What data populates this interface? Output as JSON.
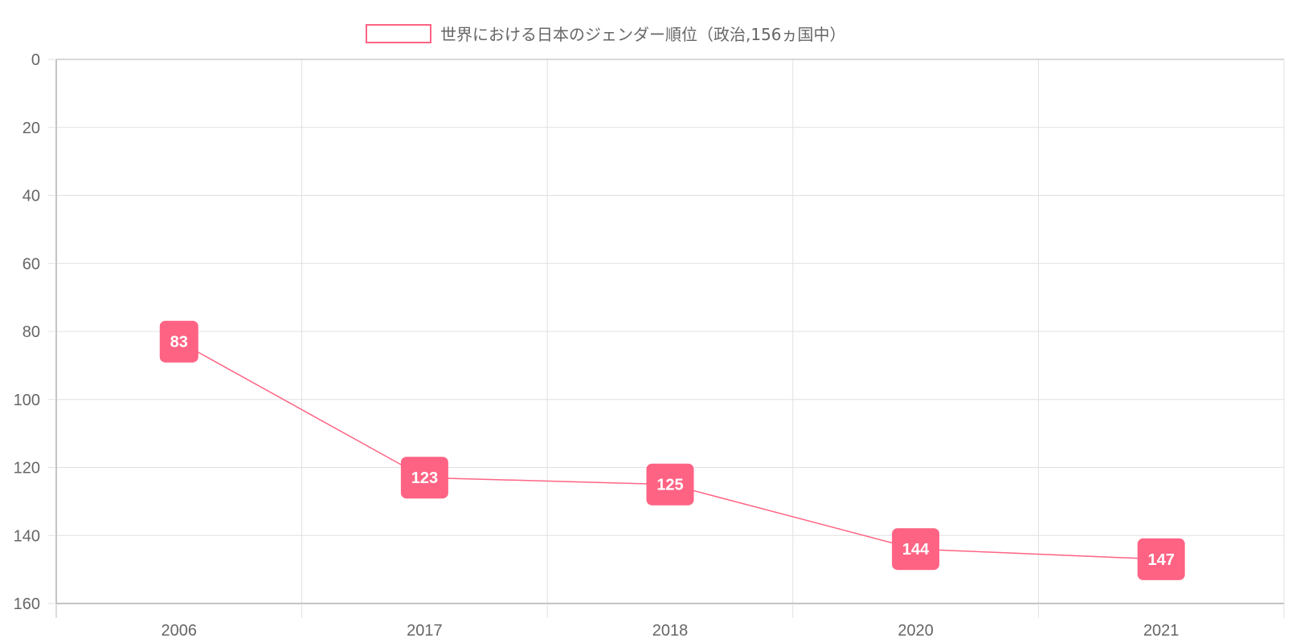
{
  "chart_data": {
    "type": "line",
    "categories": [
      "2006",
      "2017",
      "2018",
      "2020",
      "2021"
    ],
    "series": [
      {
        "name": "世界における日本のジェンダー順位（政治,156ヵ国中）",
        "values": [
          83,
          123,
          125,
          144,
          147
        ]
      }
    ],
    "ylim": [
      0,
      160
    ],
    "y_ticks": [
      0,
      20,
      40,
      60,
      80,
      100,
      120,
      140,
      160
    ],
    "y_reversed": true,
    "grid": true,
    "legend_position": "top",
    "data_labels": true
  },
  "colors": {
    "series": "#ff6384",
    "label_bg": "#ff6384",
    "label_text": "#ffffff",
    "grid": "#e0e0e0",
    "axis": "#b0b0b0",
    "text": "#666666"
  }
}
